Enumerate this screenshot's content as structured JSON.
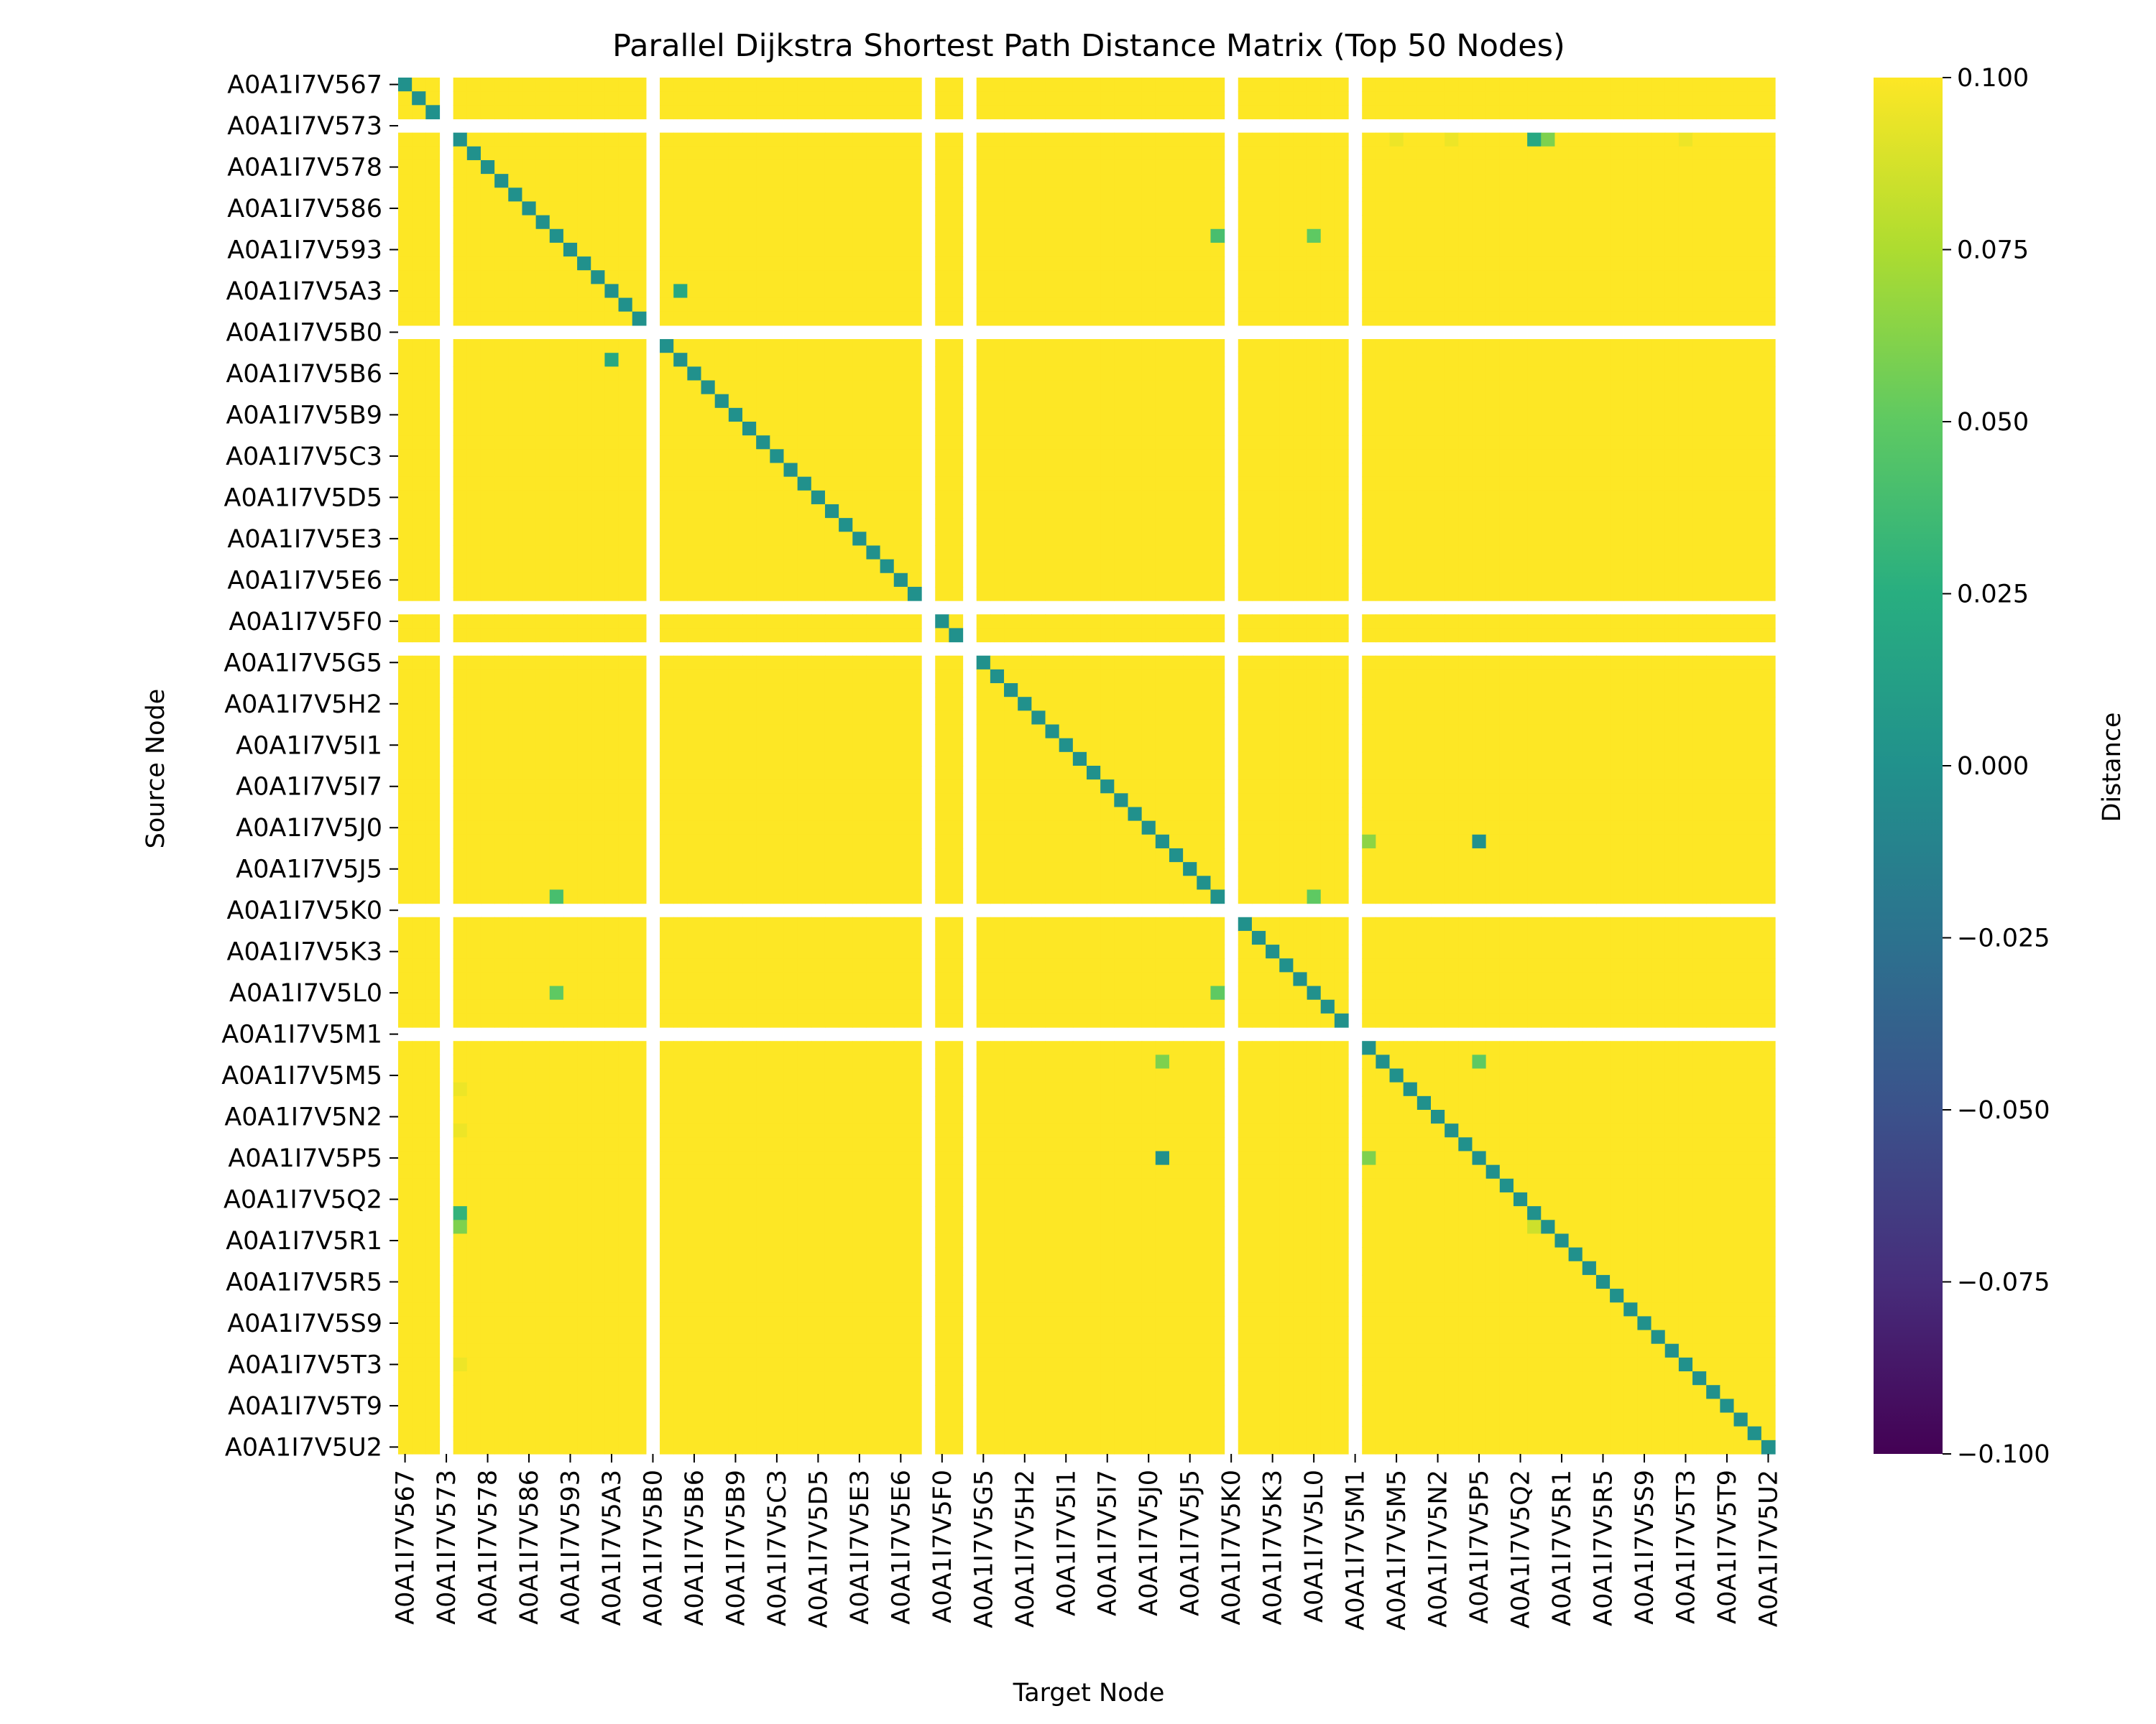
{
  "chart_data": {
    "type": "heatmap",
    "title": "Parallel Dijkstra Shortest Path Distance Matrix (Top 50 Nodes)",
    "xlabel": "Target Node",
    "ylabel": "Source Node",
    "colorbar_label": "Distance",
    "colormap": "viridis",
    "vmin": -0.1,
    "vmax": 0.1,
    "colorbar_ticks": [
      "0.100",
      "0.075",
      "0.050",
      "0.025",
      "0.000",
      "−0.025",
      "−0.050",
      "−0.075",
      "−0.100"
    ],
    "tick_labels": [
      "A0A1I7V567",
      "A0A1I7V573",
      "A0A1I7V578",
      "A0A1I7V586",
      "A0A1I7V593",
      "A0A1I7V5A3",
      "A0A1I7V5B0",
      "A0A1I7V5B6",
      "A0A1I7V5B9",
      "A0A1I7V5C3",
      "A0A1I7V5D5",
      "A0A1I7V5E3",
      "A0A1I7V5E6",
      "A0A1I7V5F0",
      "A0A1I7V5G5",
      "A0A1I7V5H2",
      "A0A1I7V5I1",
      "A0A1I7V5I7",
      "A0A1I7V5J0",
      "A0A1I7V5J5",
      "A0A1I7V5K0",
      "A0A1I7V5K3",
      "A0A1I7V5L0",
      "A0A1I7V5M1",
      "A0A1I7V5M5",
      "A0A1I7V5N2",
      "A0A1I7V5P5",
      "A0A1I7V5Q2",
      "A0A1I7V5R1",
      "A0A1I7V5R5",
      "A0A1I7V5S9",
      "A0A1I7V5T3",
      "A0A1I7V5T9",
      "A0A1I7V5U2"
    ],
    "label_every": 3,
    "matrix_size": 100,
    "default_value": 0.1,
    "diagonal_value": 0.0,
    "missing_rows": [
      3,
      18,
      38,
      41,
      60,
      69
    ],
    "missing_cols": [
      3,
      18,
      38,
      41,
      60,
      69
    ],
    "cells": [
      {
        "row": 4,
        "col": 72,
        "value": 0.095
      },
      {
        "row": 4,
        "col": 76,
        "value": 0.095
      },
      {
        "row": 4,
        "col": 82,
        "value": 0.02
      },
      {
        "row": 4,
        "col": 83,
        "value": 0.06
      },
      {
        "row": 4,
        "col": 93,
        "value": 0.095
      },
      {
        "row": 11,
        "col": 59,
        "value": 0.04
      },
      {
        "row": 11,
        "col": 66,
        "value": 0.05
      },
      {
        "row": 15,
        "col": 20,
        "value": 0.02
      },
      {
        "row": 20,
        "col": 15,
        "value": 0.02
      },
      {
        "row": 55,
        "col": 70,
        "value": 0.065
      },
      {
        "row": 55,
        "col": 78,
        "value": 0.0
      },
      {
        "row": 59,
        "col": 11,
        "value": 0.04
      },
      {
        "row": 59,
        "col": 66,
        "value": 0.05
      },
      {
        "row": 66,
        "col": 11,
        "value": 0.05
      },
      {
        "row": 66,
        "col": 59,
        "value": 0.05
      },
      {
        "row": 71,
        "col": 55,
        "value": 0.06
      },
      {
        "row": 71,
        "col": 78,
        "value": 0.05
      },
      {
        "row": 73,
        "col": 4,
        "value": 0.095
      },
      {
        "row": 76,
        "col": 4,
        "value": 0.095
      },
      {
        "row": 78,
        "col": 55,
        "value": 0.0
      },
      {
        "row": 78,
        "col": 70,
        "value": 0.06
      },
      {
        "row": 82,
        "col": 4,
        "value": 0.03
      },
      {
        "row": 83,
        "col": 4,
        "value": 0.06
      },
      {
        "row": 83,
        "col": 82,
        "value": 0.085
      },
      {
        "row": 93,
        "col": 4,
        "value": 0.095
      }
    ]
  }
}
